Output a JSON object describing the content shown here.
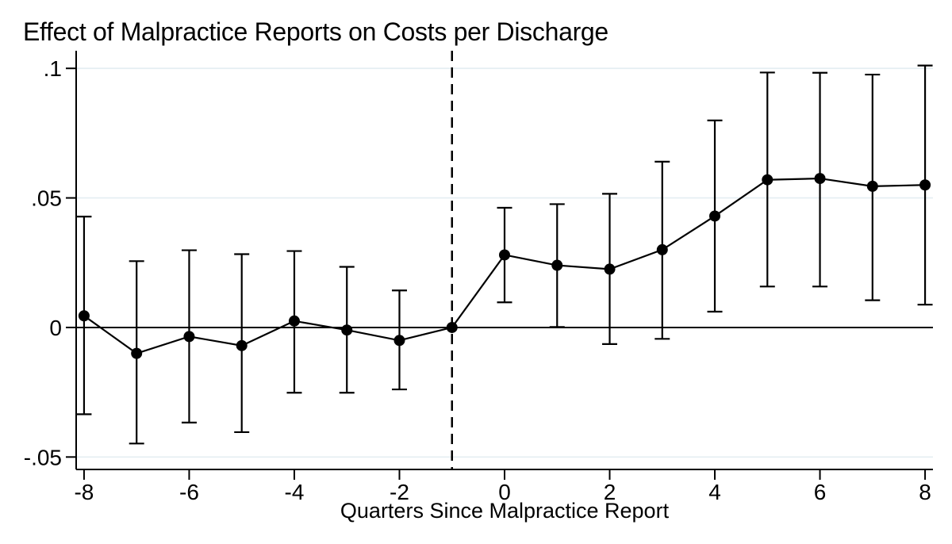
{
  "chart_data": {
    "type": "line",
    "title": "Effect of Malpractice Reports on Costs per Discharge",
    "xlabel": "Quarters Since Malpractice Report",
    "ylabel": "",
    "error_bars": true,
    "grid": true,
    "legend": "none",
    "xlim": [
      -8.15,
      8.15
    ],
    "ylim": [
      -0.0548,
      0.1068
    ],
    "reference_line_x": -1,
    "zero_line_y": 0,
    "xticks": [
      {
        "v": -8,
        "label": "-8"
      },
      {
        "v": -6,
        "label": "-6"
      },
      {
        "v": -4,
        "label": "-4"
      },
      {
        "v": -2,
        "label": "-2"
      },
      {
        "v": 0,
        "label": "0"
      },
      {
        "v": 2,
        "label": "2"
      },
      {
        "v": 4,
        "label": "4"
      },
      {
        "v": 6,
        "label": "6"
      },
      {
        "v": 8,
        "label": "8"
      }
    ],
    "yticks": [
      {
        "v": 0.1,
        "label": ".1"
      },
      {
        "v": 0.05,
        "label": ".05"
      },
      {
        "v": 0,
        "label": "0"
      },
      {
        "v": -0.05,
        "label": "-.05"
      }
    ],
    "points": [
      {
        "q": -8,
        "estimate": 0.0045,
        "ci": [
          -0.0335,
          0.0428
        ]
      },
      {
        "q": -7,
        "estimate": -0.01,
        "ci": [
          -0.0448,
          0.0256
        ]
      },
      {
        "q": -6,
        "estimate": -0.0035,
        "ci": [
          -0.0367,
          0.0298
        ]
      },
      {
        "q": -5,
        "estimate": -0.007,
        "ci": [
          -0.0404,
          0.0283
        ]
      },
      {
        "q": -4,
        "estimate": 0.0025,
        "ci": [
          -0.0252,
          0.0295
        ]
      },
      {
        "q": -3,
        "estimate": -0.001,
        "ci": [
          -0.0252,
          0.0234
        ]
      },
      {
        "q": -2,
        "estimate": -0.005,
        "ci": [
          -0.0239,
          0.0143
        ]
      },
      {
        "q": -1,
        "estimate": 0.0,
        "ci": null
      },
      {
        "q": 0,
        "estimate": 0.028,
        "ci": [
          0.0097,
          0.0462
        ]
      },
      {
        "q": 1,
        "estimate": 0.024,
        "ci": [
          0.0002,
          0.0476
        ]
      },
      {
        "q": 2,
        "estimate": 0.0225,
        "ci": [
          -0.0064,
          0.0516
        ]
      },
      {
        "q": 3,
        "estimate": 0.03,
        "ci": [
          -0.0044,
          0.064
        ]
      },
      {
        "q": 4,
        "estimate": 0.043,
        "ci": [
          0.0061,
          0.0799
        ]
      },
      {
        "q": 5,
        "estimate": 0.057,
        "ci": [
          0.0158,
          0.0984
        ]
      },
      {
        "q": 6,
        "estimate": 0.0575,
        "ci": [
          0.0158,
          0.0983
        ]
      },
      {
        "q": 7,
        "estimate": 0.0545,
        "ci": [
          0.0105,
          0.0976
        ]
      },
      {
        "q": 8,
        "estimate": 0.055,
        "ci": [
          0.0088,
          0.1011
        ]
      }
    ],
    "colors": {
      "series": "#000000",
      "grid": "#e4eef2",
      "axis": "#000000",
      "reference_line": "#000000",
      "background": "#ffffff",
      "text": "#000000"
    }
  }
}
